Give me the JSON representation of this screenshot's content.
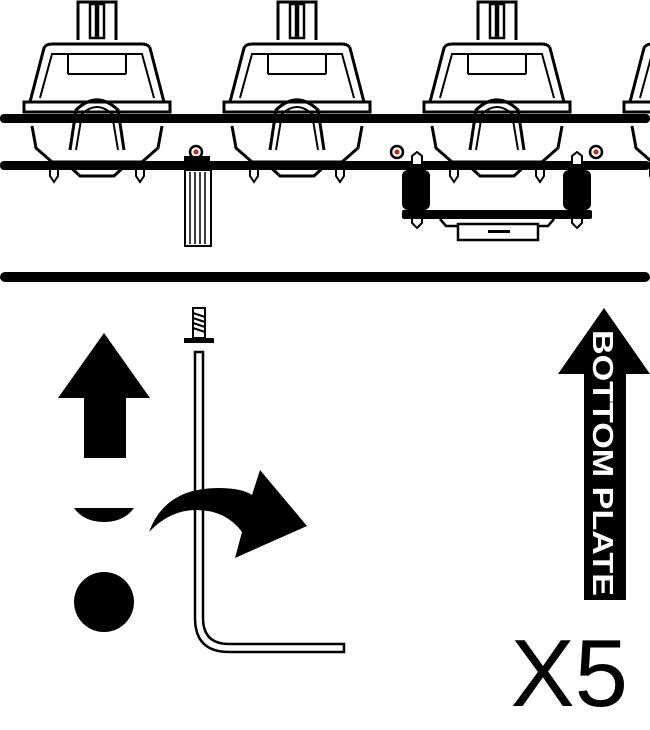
{
  "arrow_label": "BOTTOM PLATE",
  "quantity": "X5",
  "colors": {
    "ink": "#000000",
    "paper": "#ffffff",
    "accent": "#cc2222"
  },
  "icons": {
    "switch": "mechanical-switch-icon",
    "screw_top": "screw-icon",
    "screw_bottom": "screw-icon",
    "stabilizer": "stabilizer-icon",
    "up_arrow": "up-arrow-icon",
    "rotate_arrow": "curved-arrow-icon",
    "wrench": "hex-key-icon",
    "orientation_arrow": "up-arrow-icon"
  }
}
